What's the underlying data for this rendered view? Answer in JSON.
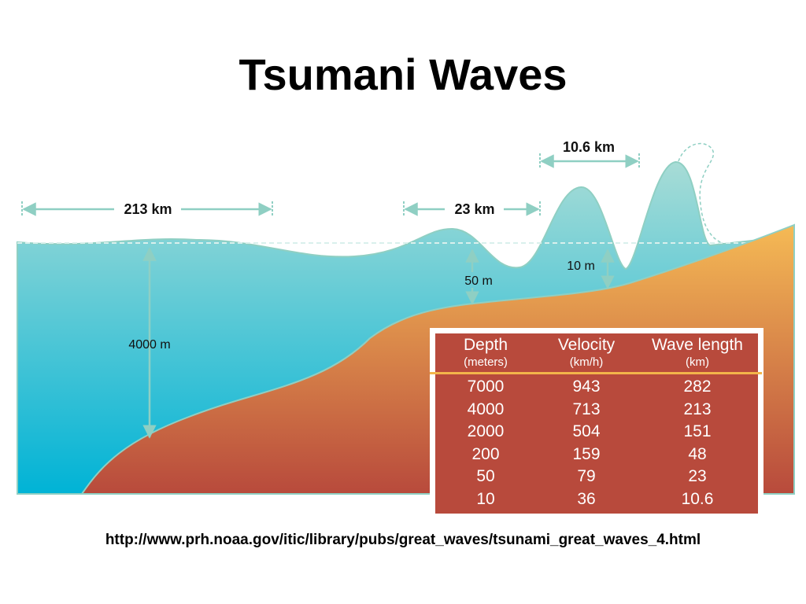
{
  "slide": {
    "title": "Tsumani Waves",
    "source_url": "http://www.prh.noaa.gov/itic/library/pubs/great_waves/tsunami_great_waves_4.html"
  },
  "diagram": {
    "labels": {
      "wavelength_deep": "213 km",
      "wavelength_mid": "23 km",
      "wavelength_shallow": "10.6 km",
      "depth_deep": "4000 m",
      "depth_mid": "50 m",
      "depth_shallow": "10 m"
    },
    "colors": {
      "water_top": "#a8dcd6",
      "water_bottom": "#00b3d6",
      "seafloor_top": "#f5ba55",
      "seafloor_bottom": "#b84a3c",
      "outline": "#8fcfc3",
      "table_bg": "#b84a3c",
      "table_rule": "#f3b54a"
    }
  },
  "table": {
    "columns": [
      {
        "label": "Depth",
        "unit": "(meters)"
      },
      {
        "label": "Velocity",
        "unit": "(km/h)"
      },
      {
        "label": "Wave length",
        "unit": "(km)"
      }
    ],
    "rows": [
      [
        "7000",
        "943",
        "282"
      ],
      [
        "4000",
        "713",
        "213"
      ],
      [
        "2000",
        "504",
        "151"
      ],
      [
        "200",
        "159",
        "48"
      ],
      [
        "50",
        "79",
        "23"
      ],
      [
        "10",
        "36",
        "10.6"
      ]
    ]
  }
}
